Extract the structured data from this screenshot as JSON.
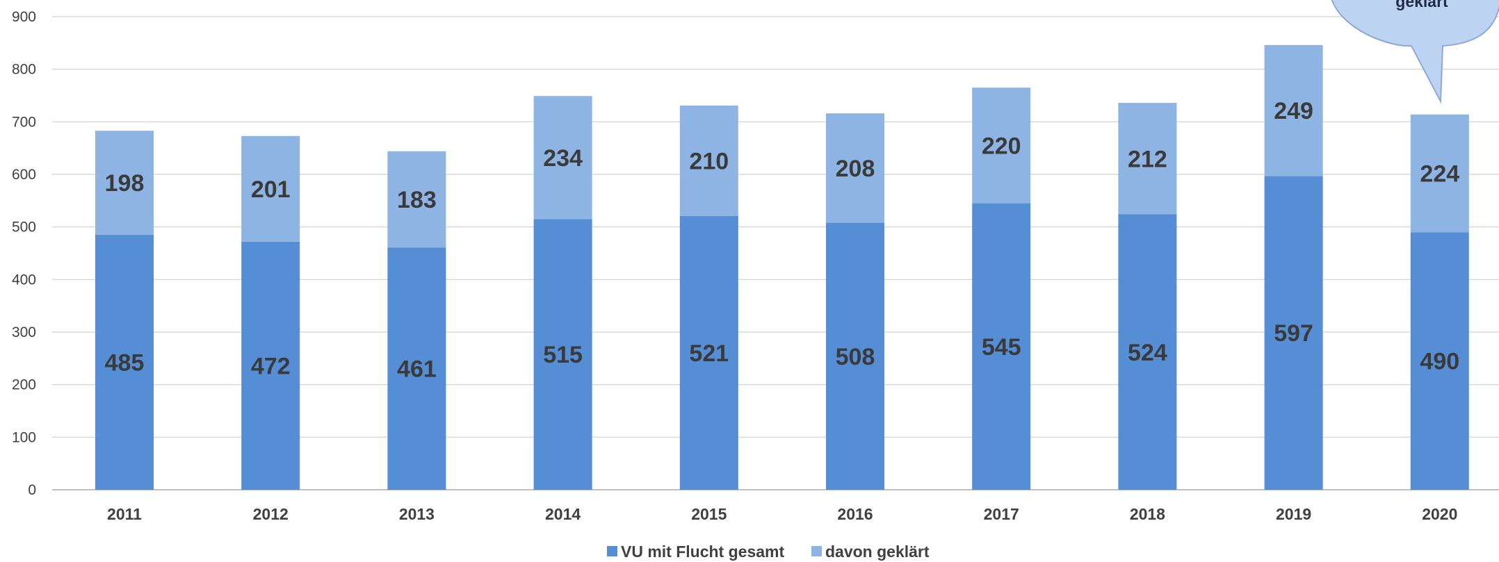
{
  "chart_data": {
    "type": "bar",
    "stacked": true,
    "categories": [
      "2011",
      "2012",
      "2013",
      "2014",
      "2015",
      "2016",
      "2017",
      "2018",
      "2019",
      "2020"
    ],
    "series": [
      {
        "name": "VU mit Flucht gesamt",
        "values": [
          485,
          472,
          461,
          515,
          521,
          508,
          545,
          524,
          597,
          490
        ],
        "color": "#558ed5"
      },
      {
        "name": "davon geklärt",
        "values": [
          198,
          201,
          183,
          234,
          210,
          208,
          220,
          212,
          249,
          224
        ],
        "color": "#8eb4e3"
      }
    ],
    "ylim": [
      0,
      900
    ],
    "yticks": [
      0,
      100,
      200,
      300,
      400,
      500,
      600,
      700,
      800,
      900
    ],
    "grid": true,
    "legend_position": "bottom",
    "callout": {
      "text": "geklärt",
      "points_to": "2020"
    }
  }
}
